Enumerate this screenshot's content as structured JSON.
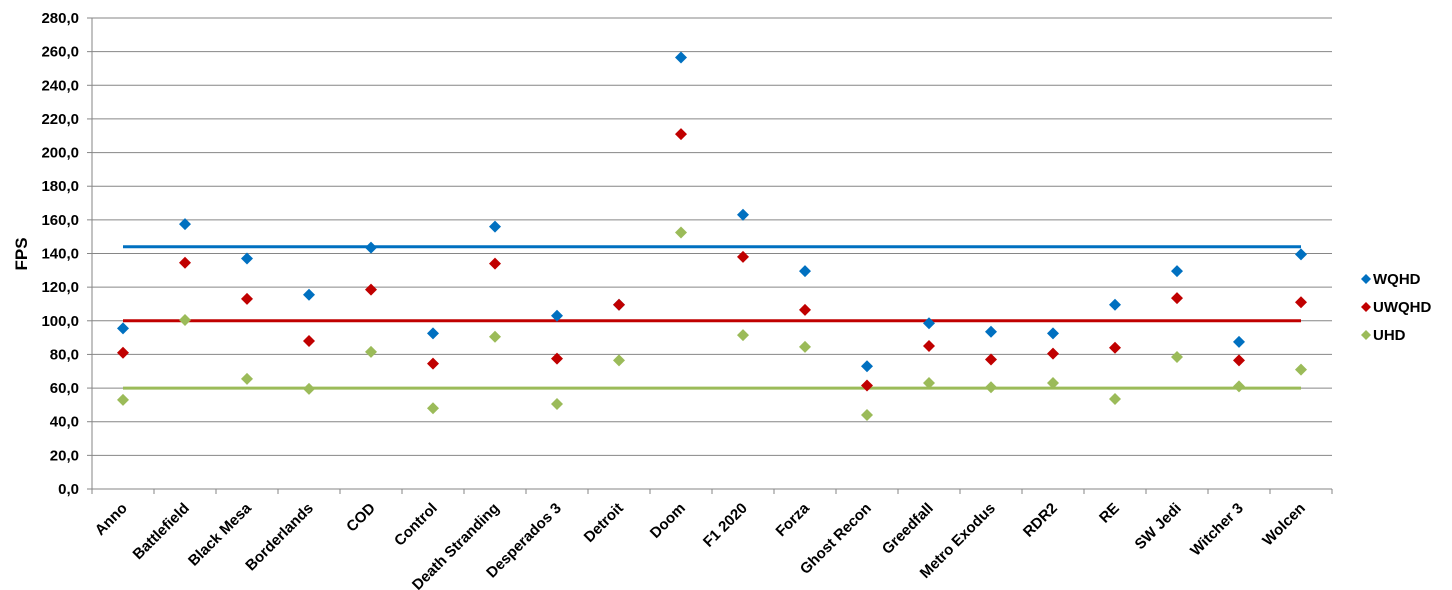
{
  "chart_data": {
    "type": "scatter",
    "title": "",
    "xlabel": "",
    "ylabel": "FPS",
    "ylim": [
      0,
      280
    ],
    "ytick_step": 20,
    "ytick_labels": [
      "0,0",
      "20,0",
      "40,0",
      "60,0",
      "80,0",
      "100,0",
      "120,0",
      "140,0",
      "160,0",
      "180,0",
      "200,0",
      "220,0",
      "240,0",
      "260,0",
      "280,0"
    ],
    "grid": true,
    "legend_position": "right",
    "categories": [
      "Anno",
      "Battlefield",
      "Black Mesa",
      "Borderlands",
      "COD",
      "Control",
      "Death Stranding",
      "Desperados 3",
      "Detroit",
      "Doom",
      "F1 2020",
      "Forza",
      "Ghost Recon",
      "Greedfall",
      "Metro Exodus",
      "RDR2",
      "RE",
      "SW Jedi",
      "Witcher 3",
      "Wolcen"
    ],
    "series": [
      {
        "name": "WQHD",
        "color": "#0070C0",
        "values": [
          95.5,
          157.5,
          137,
          115.5,
          143.5,
          92.5,
          156,
          103,
          109.5,
          256.5,
          163,
          129.5,
          73,
          98.5,
          93.5,
          92.5,
          109.5,
          129.5,
          87.5,
          139.5
        ]
      },
      {
        "name": "UWQHD",
        "color": "#C00000",
        "values": [
          81,
          134.5,
          113,
          88,
          118.5,
          74.5,
          134,
          77.5,
          109.5,
          211,
          138,
          106.5,
          61.5,
          85,
          77,
          80.5,
          84,
          113.5,
          76.5,
          111
        ]
      },
      {
        "name": "UHD",
        "color": "#9BBB59",
        "values": [
          53,
          100.5,
          65.5,
          59.5,
          81.5,
          48,
          90.5,
          50.5,
          76.5,
          152.5,
          91.5,
          84.5,
          44,
          63,
          60.5,
          63,
          53.5,
          78.5,
          61,
          71
        ]
      }
    ],
    "reference_lines": [
      {
        "series": "WQHD",
        "value": 144,
        "color": "#0070C0"
      },
      {
        "series": "UWQHD",
        "value": 100,
        "color": "#C00000"
      },
      {
        "series": "UHD",
        "value": 60,
        "color": "#9BBB59"
      }
    ]
  }
}
